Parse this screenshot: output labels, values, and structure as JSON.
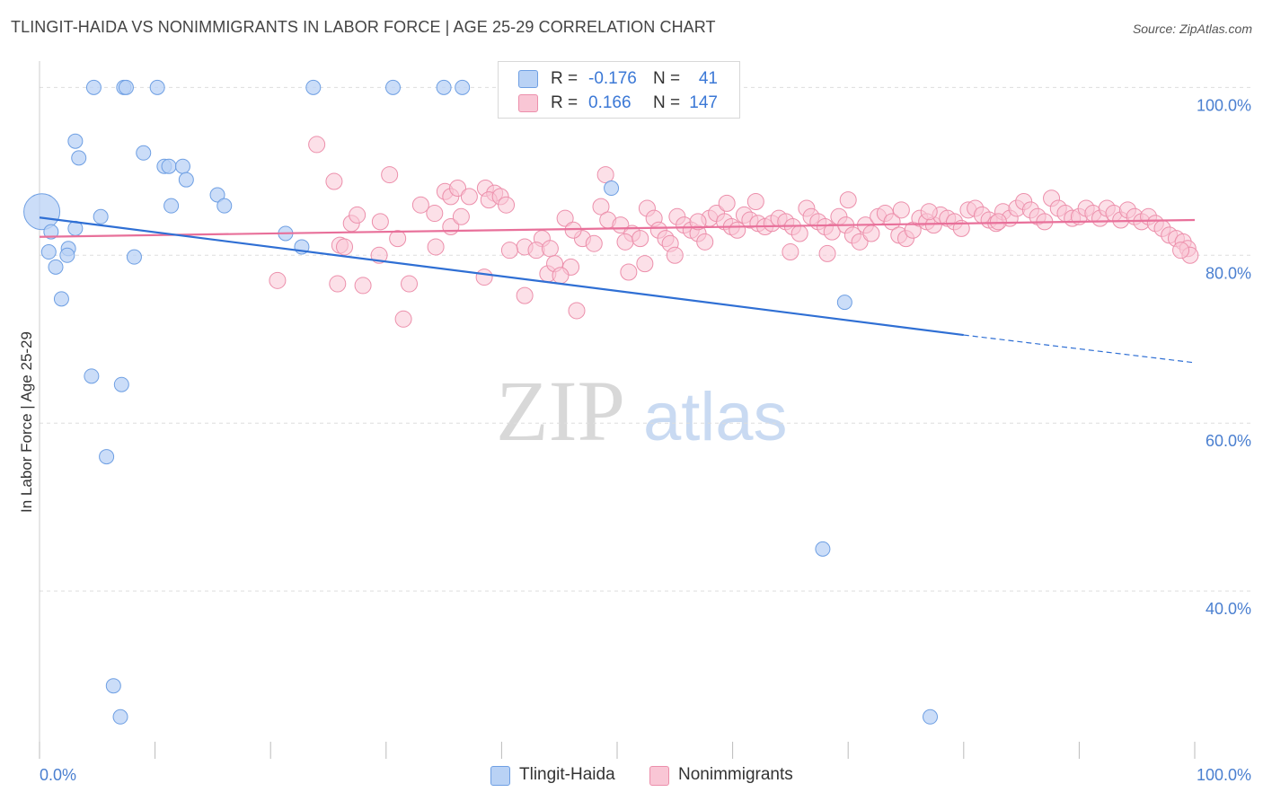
{
  "header": {
    "title": "TLINGIT-HAIDA VS NONIMMIGRANTS IN LABOR FORCE | AGE 25-29 CORRELATION CHART",
    "source": "Source: ZipAtlas.com"
  },
  "watermark": {
    "zip": "ZIP",
    "atlas": "atlas"
  },
  "legend": {
    "rows": [
      {
        "r_label": "R =",
        "r_value": "-0.176",
        "n_label": "N =",
        "n_value": "41"
      },
      {
        "r_label": "R =",
        "r_value": "0.166",
        "n_label": "N =",
        "n_value": "147"
      }
    ]
  },
  "bottom_legend": {
    "series1": "Tlingit-Haida",
    "series2": "Nonimmigrants"
  },
  "colors": {
    "series1_fill": "#b9d2f5",
    "series1_stroke": "#6e9fe3",
    "series1_line": "#2f6fd4",
    "series2_fill": "#f9c6d5",
    "series2_stroke": "#ec8fab",
    "series2_line": "#e8709a",
    "tick_label": "#4a7fd0",
    "grid": "#dddddd"
  },
  "chart_data": {
    "type": "scatter",
    "title": "TLINGIT-HAIDA VS NONIMMIGRANTS IN LABOR FORCE | AGE 25-29 CORRELATION CHART",
    "xlabel": "",
    "ylabel": "In Labor Force | Age 25-29",
    "xlim": [
      0,
      100
    ],
    "ylim": [
      20,
      104
    ],
    "x_tick_labels": [
      "0.0%",
      "100.0%"
    ],
    "y_ticks": [
      40,
      60,
      80,
      100
    ],
    "y_tick_labels": [
      "40.0%",
      "60.0%",
      "80.0%",
      "100.0%"
    ],
    "grid": true,
    "legend_position": "top-center",
    "series": [
      {
        "name": "Tlingit-Haida",
        "r": -0.176,
        "n": 41,
        "trend": {
          "x0": 0,
          "y0": 84.5,
          "x1": 80,
          "y1": 70.5,
          "dashed_to_x": 100,
          "dashed_to_y": 67.2
        },
        "points": [
          [
            0.2,
            85.2,
            20
          ],
          [
            1.0,
            82.8,
            8
          ],
          [
            0.8,
            80.4,
            8
          ],
          [
            1.4,
            78.6,
            8
          ],
          [
            1.9,
            74.8,
            8
          ],
          [
            3.1,
            83.2,
            8
          ],
          [
            2.5,
            80.8,
            8
          ],
          [
            2.4,
            80.0,
            8
          ],
          [
            3.1,
            93.6,
            8
          ],
          [
            3.4,
            91.6,
            8
          ],
          [
            5.3,
            84.6,
            8
          ],
          [
            4.5,
            65.6,
            8
          ],
          [
            7.1,
            64.6,
            8
          ],
          [
            5.8,
            56.0,
            8
          ],
          [
            8.2,
            79.8,
            8
          ],
          [
            4.7,
            100.0,
            8
          ],
          [
            7.3,
            100.0,
            8
          ],
          [
            7.5,
            100.0,
            8
          ],
          [
            10.2,
            100.0,
            8
          ],
          [
            9.0,
            92.2,
            8
          ],
          [
            10.8,
            90.6,
            8
          ],
          [
            11.2,
            90.6,
            8
          ],
          [
            12.4,
            90.6,
            8
          ],
          [
            12.7,
            89.0,
            8
          ],
          [
            11.4,
            85.9,
            8
          ],
          [
            15.4,
            87.2,
            8
          ],
          [
            16.0,
            85.9,
            8
          ],
          [
            21.3,
            82.6,
            8
          ],
          [
            22.7,
            81.0,
            8
          ],
          [
            23.7,
            100.0,
            8
          ],
          [
            30.6,
            100.0,
            8
          ],
          [
            35.0,
            100.0,
            8
          ],
          [
            36.6,
            100.0,
            8
          ],
          [
            50.2,
            100.0,
            8
          ],
          [
            49.5,
            88.0,
            8
          ],
          [
            69.7,
            74.4,
            8
          ],
          [
            67.8,
            45.0,
            8
          ],
          [
            6.4,
            28.7,
            8
          ],
          [
            7.0,
            25.0,
            8
          ],
          [
            77.1,
            25.0,
            8
          ],
          [
            51.6,
            100.0,
            8
          ]
        ]
      },
      {
        "name": "Nonimmigrants",
        "r": 0.166,
        "n": 147,
        "trend": {
          "x0": 0,
          "y0": 82.2,
          "x1": 100,
          "y1": 84.2
        },
        "points": [
          [
            24.0,
            93.2
          ],
          [
            25.5,
            88.8
          ],
          [
            30.3,
            89.6
          ],
          [
            27.0,
            83.8
          ],
          [
            27.5,
            84.8
          ],
          [
            29.5,
            84.0
          ],
          [
            31.0,
            82.0
          ],
          [
            26.0,
            81.2
          ],
          [
            26.4,
            81.0
          ],
          [
            29.4,
            80.0
          ],
          [
            34.3,
            81.0
          ],
          [
            34.2,
            85.0
          ],
          [
            35.1,
            87.6
          ],
          [
            35.6,
            87.0
          ],
          [
            36.2,
            88.0
          ],
          [
            35.6,
            83.4
          ],
          [
            37.2,
            87.0
          ],
          [
            38.6,
            88.0
          ],
          [
            39.4,
            87.4
          ],
          [
            38.9,
            86.6
          ],
          [
            39.9,
            87.0
          ],
          [
            40.4,
            86.0
          ],
          [
            43.5,
            82.0
          ],
          [
            42.0,
            81.0
          ],
          [
            43.0,
            80.6
          ],
          [
            44.2,
            80.8
          ],
          [
            44.0,
            77.8
          ],
          [
            44.6,
            79.0
          ],
          [
            46.0,
            78.6
          ],
          [
            45.1,
            77.6
          ],
          [
            47.0,
            82.0
          ],
          [
            48.0,
            81.4
          ],
          [
            45.5,
            84.4
          ],
          [
            46.2,
            83.0
          ],
          [
            48.6,
            85.8
          ],
          [
            49.2,
            84.2
          ],
          [
            50.3,
            83.6
          ],
          [
            51.3,
            82.6
          ],
          [
            50.7,
            81.6
          ],
          [
            52.0,
            82.0
          ],
          [
            52.6,
            85.6
          ],
          [
            53.2,
            84.4
          ],
          [
            53.6,
            83.0
          ],
          [
            54.2,
            82.0
          ],
          [
            54.6,
            81.4
          ],
          [
            55.2,
            84.6
          ],
          [
            55.8,
            83.6
          ],
          [
            56.4,
            83.0
          ],
          [
            57.0,
            82.6
          ],
          [
            57.6,
            81.6
          ],
          [
            58.0,
            84.4
          ],
          [
            58.6,
            85.0
          ],
          [
            59.3,
            84.0
          ],
          [
            59.9,
            83.4
          ],
          [
            60.4,
            83.0
          ],
          [
            61.0,
            84.8
          ],
          [
            61.5,
            84.2
          ],
          [
            62.2,
            83.8
          ],
          [
            62.8,
            83.4
          ],
          [
            63.4,
            83.8
          ],
          [
            64.0,
            84.4
          ],
          [
            64.6,
            84.0
          ],
          [
            65.2,
            83.4
          ],
          [
            65.8,
            82.6
          ],
          [
            66.4,
            85.6
          ],
          [
            66.8,
            84.6
          ],
          [
            67.4,
            84.0
          ],
          [
            68.0,
            83.4
          ],
          [
            68.6,
            82.8
          ],
          [
            69.2,
            84.6
          ],
          [
            69.8,
            83.6
          ],
          [
            70.4,
            82.4
          ],
          [
            71.0,
            81.6
          ],
          [
            71.5,
            83.6
          ],
          [
            72.0,
            82.6
          ],
          [
            72.6,
            84.6
          ],
          [
            73.2,
            85.0
          ],
          [
            73.8,
            84.0
          ],
          [
            74.4,
            82.4
          ],
          [
            75.0,
            82.0
          ],
          [
            75.6,
            83.0
          ],
          [
            76.2,
            84.4
          ],
          [
            76.8,
            84.0
          ],
          [
            77.4,
            83.6
          ],
          [
            78.0,
            84.8
          ],
          [
            78.6,
            84.4
          ],
          [
            79.2,
            84.0
          ],
          [
            79.8,
            83.2
          ],
          [
            80.4,
            85.4
          ],
          [
            81.0,
            85.6
          ],
          [
            81.6,
            84.8
          ],
          [
            82.2,
            84.2
          ],
          [
            82.8,
            83.8
          ],
          [
            83.4,
            85.2
          ],
          [
            84.0,
            84.4
          ],
          [
            84.6,
            85.6
          ],
          [
            85.2,
            86.4
          ],
          [
            85.8,
            85.4
          ],
          [
            86.4,
            84.6
          ],
          [
            87.0,
            84.0
          ],
          [
            87.6,
            86.8
          ],
          [
            88.2,
            85.6
          ],
          [
            88.8,
            85.0
          ],
          [
            89.4,
            84.4
          ],
          [
            90.0,
            84.6
          ],
          [
            90.6,
            85.6
          ],
          [
            91.2,
            85.0
          ],
          [
            91.8,
            84.4
          ],
          [
            92.4,
            85.6
          ],
          [
            93.0,
            85.0
          ],
          [
            93.6,
            84.2
          ],
          [
            94.2,
            85.4
          ],
          [
            94.8,
            84.6
          ],
          [
            95.4,
            84.0
          ],
          [
            96.0,
            84.6
          ],
          [
            96.6,
            83.8
          ],
          [
            97.2,
            83.2
          ],
          [
            97.8,
            82.4
          ],
          [
            98.4,
            82.0
          ],
          [
            99.0,
            81.6
          ],
          [
            99.4,
            80.8
          ],
          [
            99.6,
            80.0
          ],
          [
            98.8,
            80.6
          ],
          [
            77.0,
            85.2
          ],
          [
            68.2,
            80.2
          ],
          [
            65.0,
            80.4
          ],
          [
            57.0,
            84.0
          ],
          [
            52.4,
            79.0
          ],
          [
            51.0,
            78.0
          ],
          [
            55.0,
            80.0
          ],
          [
            46.5,
            73.4
          ],
          [
            40.7,
            80.6
          ],
          [
            42.0,
            75.2
          ],
          [
            38.5,
            77.4
          ],
          [
            36.5,
            84.6
          ],
          [
            33.0,
            86.0
          ],
          [
            32.0,
            76.6
          ],
          [
            28.0,
            76.4
          ],
          [
            31.5,
            72.4
          ],
          [
            20.6,
            77.0
          ],
          [
            25.8,
            76.6
          ],
          [
            49.0,
            89.6
          ],
          [
            59.5,
            86.2
          ],
          [
            62.0,
            86.4
          ],
          [
            70.0,
            86.6
          ],
          [
            74.6,
            85.4
          ],
          [
            83.0,
            84.0
          ]
        ]
      }
    ]
  }
}
